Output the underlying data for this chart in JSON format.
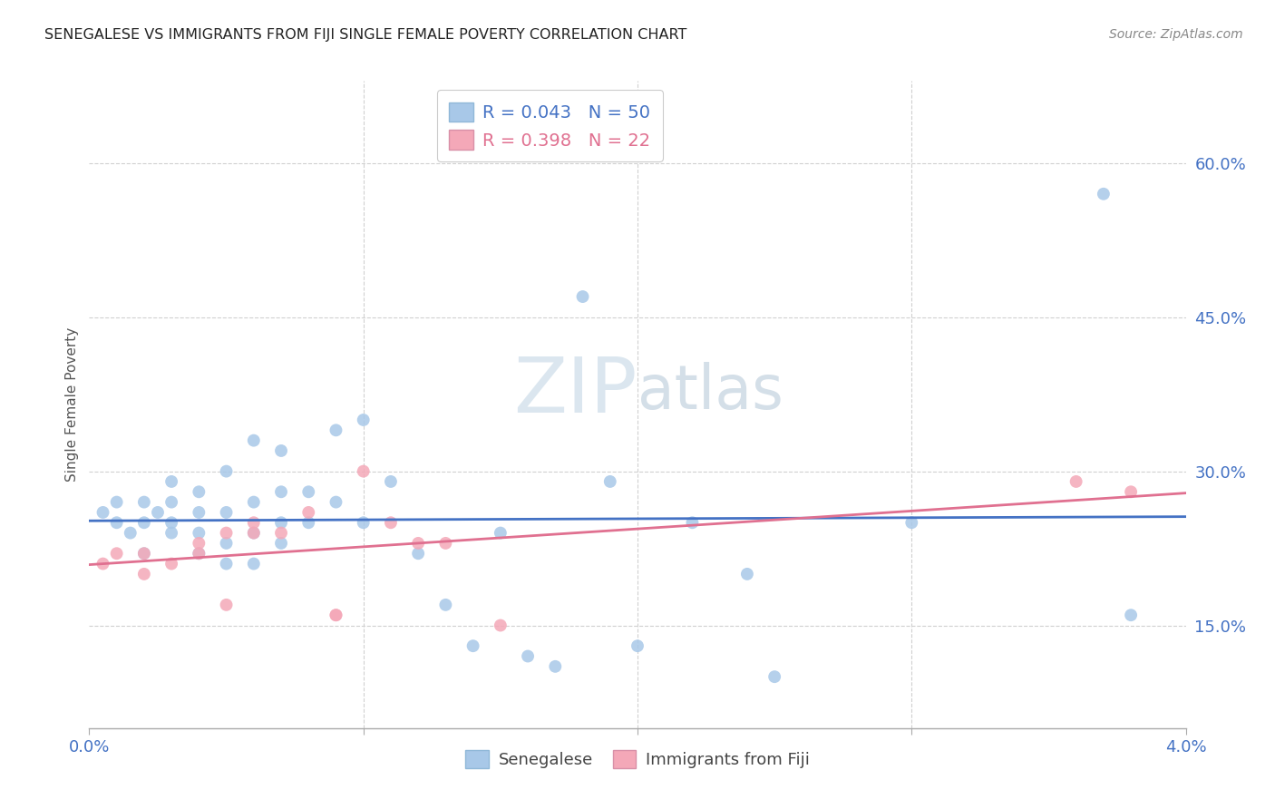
{
  "title": "SENEGALESE VS IMMIGRANTS FROM FIJI SINGLE FEMALE POVERTY CORRELATION CHART",
  "source": "Source: ZipAtlas.com",
  "ylabel": "Single Female Poverty",
  "ytick_values": [
    0.15,
    0.3,
    0.45,
    0.6
  ],
  "xlim": [
    0.0,
    0.04
  ],
  "ylim": [
    0.05,
    0.68
  ],
  "blue_color": "#a8c8e8",
  "pink_color": "#f4a8b8",
  "trend_blue": "#4472c4",
  "trend_pink": "#e07090",
  "axis_label_color": "#4472c4",
  "title_color": "#222222",
  "source_color": "#888888",
  "grid_color": "#d0d0d0",
  "watermark_color": "#c8d8e8",
  "senegalese_x": [
    0.0005,
    0.001,
    0.001,
    0.0015,
    0.002,
    0.002,
    0.002,
    0.0025,
    0.003,
    0.003,
    0.003,
    0.003,
    0.004,
    0.004,
    0.004,
    0.004,
    0.005,
    0.005,
    0.005,
    0.005,
    0.006,
    0.006,
    0.006,
    0.006,
    0.007,
    0.007,
    0.007,
    0.007,
    0.008,
    0.008,
    0.009,
    0.009,
    0.01,
    0.01,
    0.011,
    0.012,
    0.013,
    0.014,
    0.015,
    0.016,
    0.017,
    0.018,
    0.019,
    0.02,
    0.022,
    0.024,
    0.025,
    0.03,
    0.037,
    0.038
  ],
  "senegalese_y": [
    0.26,
    0.25,
    0.27,
    0.24,
    0.22,
    0.25,
    0.27,
    0.26,
    0.24,
    0.25,
    0.27,
    0.29,
    0.22,
    0.24,
    0.26,
    0.28,
    0.21,
    0.23,
    0.26,
    0.3,
    0.21,
    0.24,
    0.27,
    0.33,
    0.23,
    0.25,
    0.28,
    0.32,
    0.25,
    0.28,
    0.27,
    0.34,
    0.25,
    0.35,
    0.29,
    0.22,
    0.17,
    0.13,
    0.24,
    0.12,
    0.11,
    0.47,
    0.29,
    0.13,
    0.25,
    0.2,
    0.1,
    0.25,
    0.57,
    0.16
  ],
  "fiji_x": [
    0.0005,
    0.001,
    0.002,
    0.002,
    0.003,
    0.004,
    0.004,
    0.005,
    0.005,
    0.006,
    0.006,
    0.007,
    0.008,
    0.009,
    0.009,
    0.01,
    0.011,
    0.012,
    0.013,
    0.015,
    0.036,
    0.038
  ],
  "fiji_y": [
    0.21,
    0.22,
    0.2,
    0.22,
    0.21,
    0.22,
    0.23,
    0.17,
    0.24,
    0.24,
    0.25,
    0.24,
    0.26,
    0.16,
    0.16,
    0.3,
    0.25,
    0.23,
    0.23,
    0.15,
    0.29,
    0.28
  ],
  "legend1_label1": "R = 0.043   N = 50",
  "legend1_label2": "R = 0.398   N = 22",
  "legend2_label1": "Senegalese",
  "legend2_label2": "Immigrants from Fiji"
}
